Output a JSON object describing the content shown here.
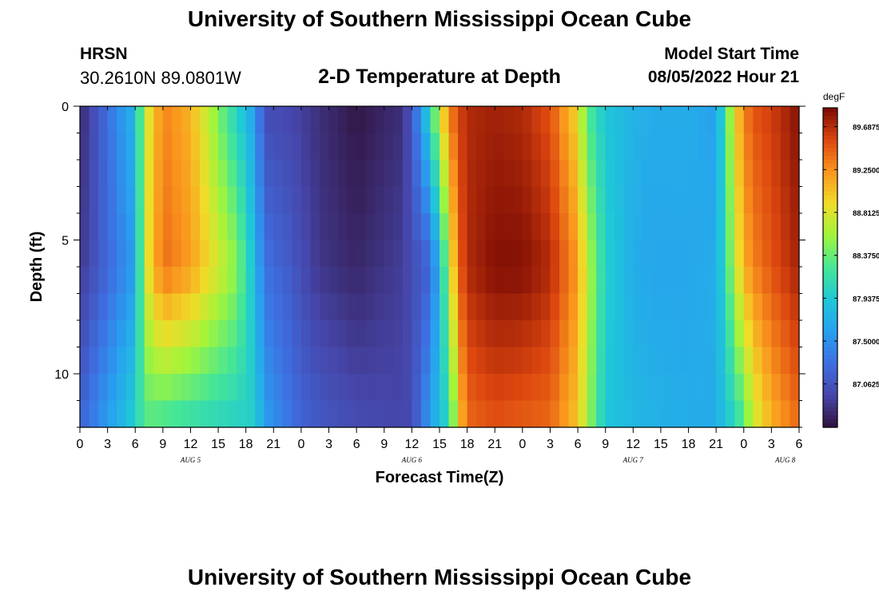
{
  "page": {
    "title": "University of Southern Mississippi Ocean Cube",
    "title_bottom": "University of Southern Mississippi Ocean Cube",
    "station": "HRSN",
    "coordinates": "30.2610N  89.0801W",
    "subtitle": "2-D Temperature at Depth",
    "model_start_label": "Model Start Time",
    "model_start_value": "08/05/2022 Hour 21"
  },
  "chart_data": {
    "type": "heatmap",
    "xlabel": "Forecast Time(Z)",
    "ylabel": "Depth (ft)",
    "x_ticks": [
      "0",
      "3",
      "6",
      "9",
      "12",
      "15",
      "18",
      "21",
      "0",
      "3",
      "6",
      "9",
      "12",
      "15",
      "18",
      "21",
      "0",
      "3",
      "6",
      "9",
      "12",
      "15",
      "18",
      "21",
      "0",
      "3",
      "6"
    ],
    "x_range_hours": [
      0,
      78
    ],
    "day_labels": [
      {
        "label": "AUG 5",
        "hour": 12
      },
      {
        "label": "AUG 6",
        "hour": 36
      },
      {
        "label": "AUG 7",
        "hour": 60
      },
      {
        "label": "AUG 8",
        "hour": 76.5
      }
    ],
    "y_ticks": [
      0,
      5,
      10
    ],
    "ylim": [
      0,
      12
    ],
    "y_inverted": true,
    "colorbar": {
      "unit": "degF",
      "ticks": [
        "89.6875",
        "89.2500",
        "88.8125",
        "88.3750",
        "87.9375",
        "87.5000",
        "87.0625"
      ],
      "min": 86.62,
      "max": 89.88
    },
    "x_hours": [
      0,
      6,
      7,
      9,
      12,
      17,
      19,
      20,
      23,
      24,
      26,
      30,
      35,
      36,
      38,
      39,
      40,
      41,
      42,
      45,
      48,
      51,
      54,
      55,
      57,
      60,
      62,
      66,
      69,
      70,
      71,
      72,
      73,
      75,
      78
    ],
    "depths_ft": [
      0,
      6,
      12
    ],
    "values_degF": [
      [
        86.75,
        86.85,
        87.2
      ],
      [
        87.8,
        87.6,
        88.0
      ],
      [
        88.7,
        88.75,
        88.3
      ],
      [
        89.3,
        89.4,
        88.2
      ],
      [
        89.1,
        89.2,
        88.1
      ],
      [
        88.0,
        88.5,
        88.0
      ],
      [
        87.6,
        87.8,
        88.0
      ],
      [
        87.0,
        87.3,
        87.6
      ],
      [
        86.95,
        87.1,
        87.3
      ],
      [
        86.9,
        87.0,
        87.2
      ],
      [
        86.8,
        86.85,
        87.1
      ],
      [
        86.65,
        86.75,
        87.0
      ],
      [
        86.8,
        86.9,
        86.95
      ],
      [
        87.1,
        87.0,
        87.0
      ],
      [
        88.1,
        87.2,
        87.6
      ],
      [
        88.8,
        87.8,
        87.9
      ],
      [
        89.3,
        88.6,
        88.0
      ],
      [
        89.55,
        89.4,
        88.9
      ],
      [
        89.7,
        89.7,
        89.4
      ],
      [
        89.75,
        89.85,
        89.5
      ],
      [
        89.7,
        89.85,
        89.45
      ],
      [
        89.5,
        89.7,
        89.4
      ],
      [
        88.9,
        89.2,
        89.0
      ],
      [
        88.3,
        88.7,
        88.6
      ],
      [
        87.9,
        88.0,
        87.9
      ],
      [
        87.75,
        87.7,
        87.8
      ],
      [
        87.7,
        87.65,
        87.75
      ],
      [
        87.7,
        87.65,
        87.7
      ],
      [
        87.6,
        87.7,
        87.7
      ],
      [
        88.2,
        88.1,
        87.9
      ],
      [
        88.9,
        88.7,
        88.0
      ],
      [
        89.3,
        89.1,
        88.3
      ],
      [
        89.5,
        89.3,
        88.7
      ],
      [
        89.6,
        89.5,
        89.1
      ],
      [
        89.85,
        89.75,
        89.4
      ]
    ]
  }
}
